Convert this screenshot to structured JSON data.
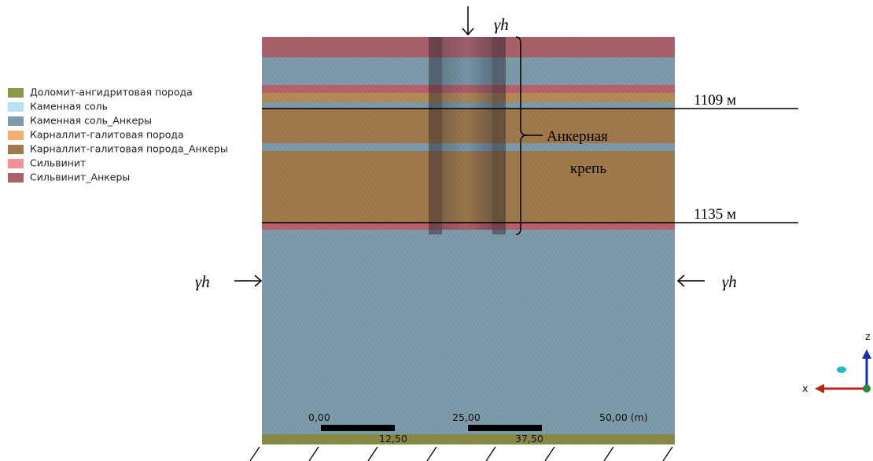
{
  "legend": {
    "items": [
      "Доломит-ангидритовая порода",
      "Каменная соль",
      "Каменная соль_Анкеры",
      "Карналлит-галитовая порода",
      "Карналлит-галитовая порода_Анкеры",
      "Сильвинит",
      "Сильвинит_Анкеры"
    ]
  },
  "loads": {
    "top": "γh",
    "left": "γh",
    "right": "γh"
  },
  "depths": {
    "upper": "1109 м",
    "lower": "1135 м"
  },
  "anchor_label": {
    "line1": "Анкерная",
    "line2": "крепь"
  },
  "scale": {
    "labels_top": [
      "0,00",
      "25,00",
      "50,00 (m)"
    ],
    "labels_bottom": [
      "12,50",
      "37,50"
    ]
  },
  "axes": {
    "z": "z",
    "x": "x"
  }
}
